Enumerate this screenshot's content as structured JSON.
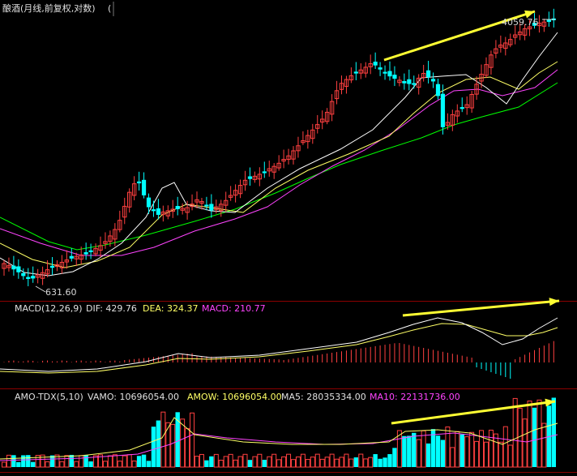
{
  "header": {
    "title": "酿酒(月线,前复权,对数)",
    "badge": "4059.76",
    "low_label": "631.60"
  },
  "macd_header": {
    "name": "MACD(12,26,9)",
    "dif": "DIF: 429.76",
    "dea": "DEA: 324.37",
    "macd": "MACD: 210.77"
  },
  "vol_header": {
    "name": "AMO-TDX(5,10)",
    "vamo": "VAMO: 10696054.00",
    "amow": "AMOW: 10696054.00",
    "ma5": "MA5: 28035334.00",
    "ma10": "MA10: 22131736.00"
  },
  "colors": {
    "background": "#000000",
    "up": "#ff4040",
    "down": "#00ffff",
    "ma_short": "#ffffff",
    "ma_mid": "#ffff66",
    "ma_long": "#ff44ff",
    "ma_longest": "#00ff00",
    "arrow": "#ffff33",
    "separator": "#8b0000"
  },
  "chart_data": {
    "type": "candlestick",
    "scale": "log",
    "period": "monthly",
    "adjustment": "forward",
    "price_high": 4059.76,
    "price_low": 631.6,
    "series": [
      {
        "name": "MACD",
        "dif": 429.76,
        "dea": 324.37,
        "macd": 210.77
      },
      {
        "name": "AMO-TDX",
        "vamo": 10696054.0,
        "amow": 10696054.0,
        "ma5": 28035334.0,
        "ma10": 22131736.0
      }
    ]
  }
}
